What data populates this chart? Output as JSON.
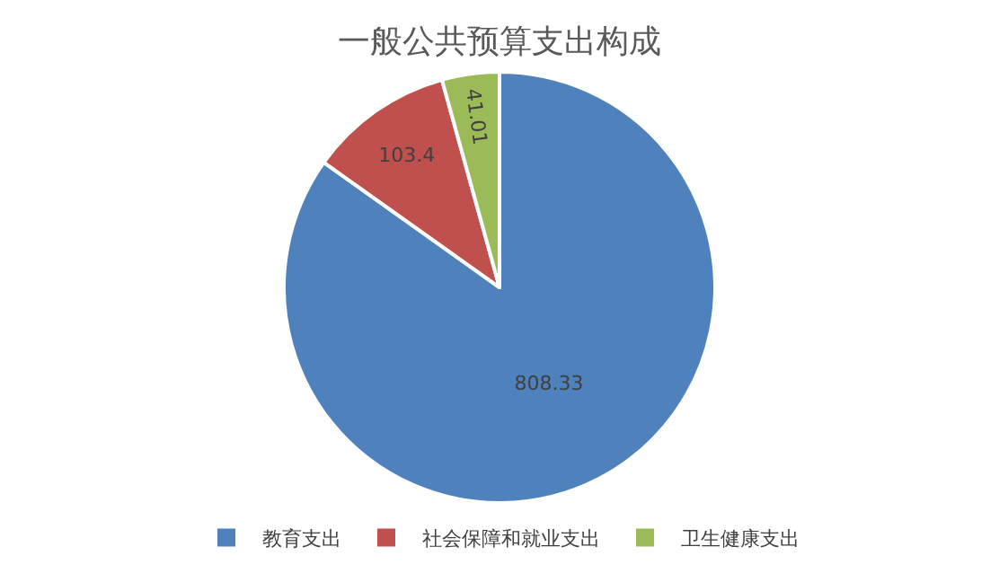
{
  "chart_data": {
    "type": "pie",
    "title": "一般公共预算支出构成",
    "categories": [
      "教育支出",
      "社会保障和就业支出",
      "卫生健康支出"
    ],
    "values": [
      808.33,
      103.4,
      41.01
    ],
    "colors": [
      "#4f81bd",
      "#c0504d",
      "#9bbb59"
    ],
    "data_labels": true,
    "legend": "bottom"
  }
}
